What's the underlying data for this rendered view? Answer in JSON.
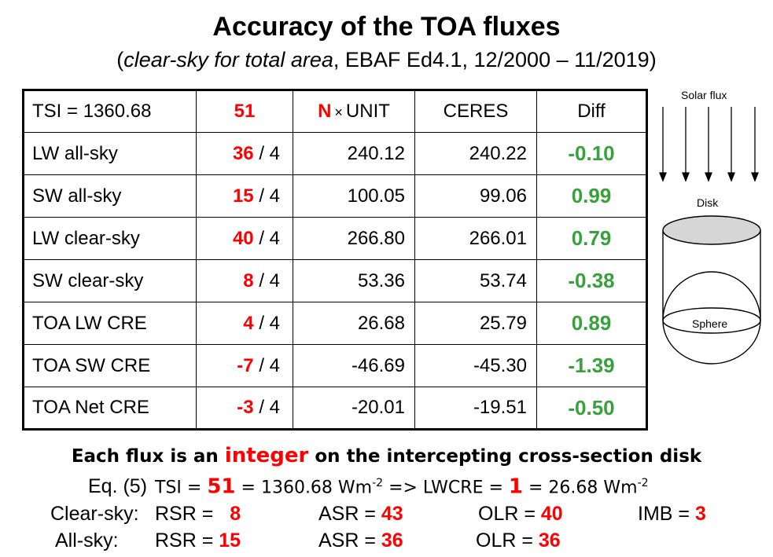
{
  "title": "Accuracy of the TOA fluxes",
  "subtitle": {
    "open": "(",
    "italic": "clear-sky for total area",
    "rest": ", EBAF Ed4.1, 12/2000 – 11/2019)"
  },
  "table": {
    "header": {
      "tsi_label": "TSI = 1360.68",
      "n_value": "51",
      "n_letter": "N",
      "times": "×",
      "unit": "UNIT",
      "ceres": "CERES",
      "diff": "Diff"
    },
    "rows": [
      {
        "label": "LW all-sky",
        "n": "36",
        "div": "/ 4",
        "unit": "240.12",
        "ceres": "240.22",
        "diff": "-0.10"
      },
      {
        "label": "SW all-sky",
        "n": "15",
        "div": "/ 4",
        "unit": "100.05",
        "ceres": "99.06",
        "diff": "0.99"
      },
      {
        "label": "LW clear-sky",
        "n": "40",
        "div": "/ 4",
        "unit": "266.80",
        "ceres": "266.01",
        "diff": "0.79"
      },
      {
        "label": "SW clear-sky",
        "n": "8",
        "div": "/ 4",
        "unit": "53.36",
        "ceres": "53.74",
        "diff": "-0.38"
      },
      {
        "label": "TOA LW CRE",
        "n": "4",
        "div": "/ 4",
        "unit": "26.68",
        "ceres": "25.79",
        "diff": "0.89"
      },
      {
        "label": "TOA SW CRE",
        "n": "-7",
        "div": "/ 4",
        "unit": "-46.69",
        "ceres": "-45.30",
        "diff": "-1.39"
      },
      {
        "label": "TOA Net CRE",
        "n": "-3",
        "div": "/ 4",
        "unit": "-20.01",
        "ceres": "-19.51",
        "diff": "-0.50"
      }
    ]
  },
  "diagram": {
    "solar_flux": "Solar flux",
    "disk": "Disk",
    "sphere": "Sphere"
  },
  "notes": {
    "line1_a": "Each flux is an ",
    "line1_b": "integer",
    "line1_c": " on the intercepting cross-section disk",
    "eq_label": "Eq. (5)",
    "eq_tsi": "TSI = ",
    "eq_tsi_n": "51",
    "eq_mid": " = 1360.68 Wm",
    "eq_exp": "-2",
    "eq_arrow": " => LWCRE = ",
    "eq_lw_n": "1",
    "eq_end": " = 26.68 Wm",
    "eq_exp2": "-2",
    "clear_label": "Clear-sky:",
    "all_label": "All-sky:",
    "rsr": "RSR = ",
    "asr": "ASR = ",
    "olr": "OLR = ",
    "imb": "IMB = ",
    "clear_rsr": "8",
    "clear_asr": "43",
    "clear_olr": "40",
    "clear_imb": "3",
    "all_rsr": "15",
    "all_asr": "36",
    "all_olr": "36"
  },
  "colors": {
    "red": "#ff0000",
    "green": "#38a13c"
  }
}
